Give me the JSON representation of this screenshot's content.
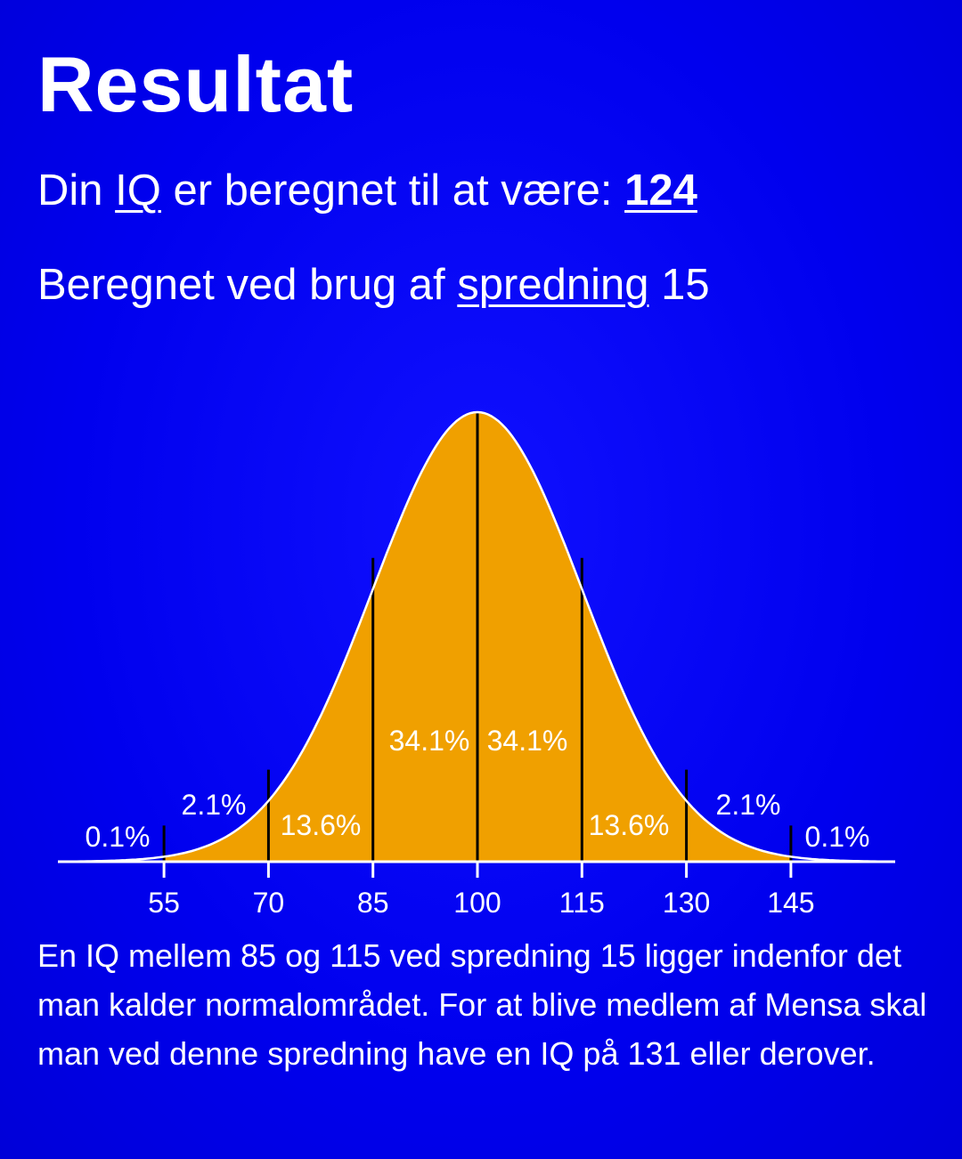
{
  "title": "Resultat",
  "iq_line": {
    "prefix": "Din ",
    "iq_link": "IQ",
    "middle": " er beregnet til at være: ",
    "value": "124"
  },
  "sd_line": {
    "prefix": "Beregnet ved brug af ",
    "sd_link": "spredning",
    "value": " 15"
  },
  "paragraph": "En IQ mellem 85 og 115 ved spredning 15 ligger indenfor det man kalder normalområdet. For at blive medlem af Mensa skal man ved denne spredning have en IQ på 131 eller derover.",
  "colors": {
    "background": "#0000ee",
    "fill": "#f0a000",
    "curve": "#ffffff",
    "dividers": "#000000"
  },
  "chart_data": {
    "type": "area",
    "description_kind": "normal distribution",
    "mean": 100,
    "sd": 15,
    "xlim": [
      40,
      160
    ],
    "ticks": [
      "55",
      "70",
      "85",
      "100",
      "115",
      "130",
      "145"
    ],
    "segments": [
      {
        "range": [
          40,
          55
        ],
        "label": "0.1%"
      },
      {
        "range": [
          55,
          70
        ],
        "label": "2.1%"
      },
      {
        "range": [
          70,
          85
        ],
        "label": "13.6%"
      },
      {
        "range": [
          85,
          100
        ],
        "label": "34.1%"
      },
      {
        "range": [
          100,
          115
        ],
        "label": "34.1%"
      },
      {
        "range": [
          115,
          130
        ],
        "label": "13.6%"
      },
      {
        "range": [
          130,
          145
        ],
        "label": "2.1%"
      },
      {
        "range": [
          145,
          160
        ],
        "label": "0.1%"
      }
    ],
    "filled_range": [
      55,
      145
    ]
  }
}
